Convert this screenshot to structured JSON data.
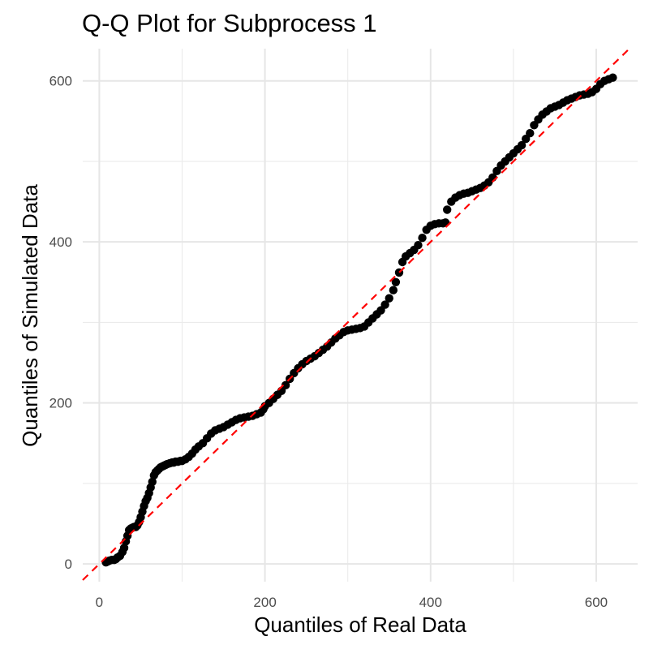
{
  "chart_data": {
    "type": "scatter",
    "title": "Q-Q Plot for Subprocess 1",
    "xlabel": "Quantiles of Real Data",
    "ylabel": "Quantiles of Simulated Data",
    "xlim": [
      -20,
      650
    ],
    "ylim": [
      -22,
      640
    ],
    "xticks": [
      0,
      200,
      400,
      600
    ],
    "yticks": [
      0,
      200,
      400,
      600
    ],
    "xtick_labels": [
      "0",
      "200",
      "400",
      "600"
    ],
    "ytick_labels": [
      "0",
      "200",
      "400",
      "600"
    ],
    "grid": true,
    "legend": "none",
    "reference_line": {
      "style": "dashed",
      "color": "#ff0000",
      "slope": 1,
      "intercept": 0
    },
    "point_color": "#000000",
    "series": [
      {
        "x": [
          8,
          10,
          12,
          15,
          18,
          20,
          22,
          25,
          28,
          30,
          32,
          34,
          36,
          38,
          40,
          42,
          44,
          46,
          48,
          50,
          52,
          54,
          56,
          58,
          60,
          62,
          64,
          66,
          68,
          70,
          72,
          74,
          76,
          78,
          80,
          82,
          85,
          88,
          90,
          92,
          95,
          98,
          100,
          104,
          108,
          112,
          116,
          120,
          125,
          130,
          135,
          140,
          145,
          150,
          155,
          160,
          165,
          170,
          175,
          180,
          185,
          190,
          195,
          198,
          200,
          205,
          210,
          215,
          220,
          225,
          230,
          235,
          240,
          245,
          250,
          255,
          260,
          265,
          270,
          275,
          280,
          285,
          290,
          295,
          300,
          305,
          310,
          315,
          320,
          325,
          330,
          335,
          340,
          345,
          350,
          355,
          358,
          362,
          366,
          370,
          375,
          380,
          385,
          390,
          395,
          400,
          405,
          410,
          415,
          418,
          420,
          425,
          430,
          435,
          440,
          445,
          450,
          455,
          460,
          465,
          470,
          475,
          480,
          485,
          490,
          495,
          500,
          505,
          510,
          515,
          520,
          525,
          530,
          535,
          540,
          545,
          550,
          555,
          560,
          565,
          570,
          575,
          580,
          585,
          590,
          595,
          600,
          605,
          610,
          615,
          620
        ],
        "y": [
          2,
          3,
          4,
          5,
          5,
          6,
          8,
          10,
          15,
          20,
          28,
          35,
          42,
          44,
          45,
          46,
          46,
          48,
          52,
          58,
          65,
          72,
          78,
          82,
          88,
          95,
          102,
          110,
          114,
          116,
          118,
          120,
          121,
          122,
          123,
          124,
          125,
          126,
          126,
          127,
          127,
          128,
          128,
          130,
          133,
          137,
          142,
          146,
          150,
          156,
          162,
          166,
          168,
          170,
          173,
          176,
          179,
          181,
          182,
          183,
          184,
          186,
          188,
          192,
          196,
          200,
          205,
          210,
          215,
          222,
          230,
          237,
          243,
          248,
          252,
          255,
          258,
          262,
          266,
          270,
          275,
          280,
          284,
          288,
          290,
          291,
          292,
          293,
          295,
          300,
          305,
          310,
          315,
          322,
          330,
          340,
          350,
          362,
          375,
          382,
          386,
          390,
          396,
          405,
          415,
          420,
          422,
          423,
          423,
          424,
          440,
          450,
          455,
          458,
          460,
          461,
          463,
          465,
          467,
          470,
          474,
          480,
          488,
          495,
          500,
          505,
          510,
          515,
          520,
          528,
          535,
          545,
          552,
          558,
          562,
          566,
          568,
          570,
          573,
          576,
          578,
          580,
          582,
          583,
          584,
          586,
          590,
          596,
          600,
          602,
          604
        ]
      }
    ]
  }
}
